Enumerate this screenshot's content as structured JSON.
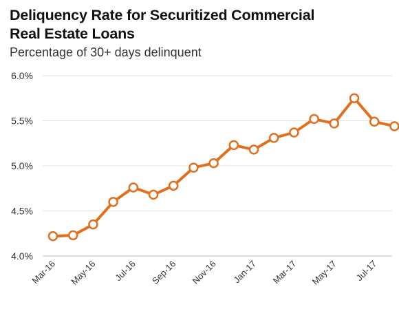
{
  "chart_data": {
    "type": "line",
    "title_line1": "Deliquency Rate for Securitized Commercial",
    "title_line2": "Real Estate Loans",
    "subtitle": "Percentage of 30+ days delinquent",
    "xlabel": "",
    "ylabel": "",
    "ylim": [
      4.0,
      6.0
    ],
    "yticks": [
      "4.0%",
      "4.5%",
      "5.0%",
      "5.5%",
      "6.0%"
    ],
    "ytick_values": [
      4.0,
      4.5,
      5.0,
      5.5,
      6.0
    ],
    "grid": true,
    "categories": [
      "Mar-16",
      "Apr-16",
      "May-16",
      "Jun-16",
      "Jul-16",
      "Aug-16",
      "Sep-16",
      "Oct-16",
      "Nov-16",
      "Dec-16",
      "Jan-17",
      "Feb-17",
      "Mar-17",
      "Apr-17",
      "May-17",
      "Jun-17",
      "Jul-17",
      "Aug-17"
    ],
    "xtick_labels": [
      "Mar-16",
      "",
      "May-16",
      "",
      "Jul-16",
      "",
      "Sep-16",
      "",
      "Nov-16",
      "",
      "Jan-17",
      "",
      "Mar-17",
      "",
      "May-17",
      "",
      "Jul-17",
      ""
    ],
    "values": [
      4.22,
      4.23,
      4.35,
      4.6,
      4.76,
      4.68,
      4.78,
      4.98,
      5.03,
      5.23,
      5.18,
      5.31,
      5.37,
      5.52,
      5.47,
      5.75,
      5.49,
      5.44
    ],
    "line_color": "#E0701D",
    "marker_fill": "#ffffff"
  }
}
